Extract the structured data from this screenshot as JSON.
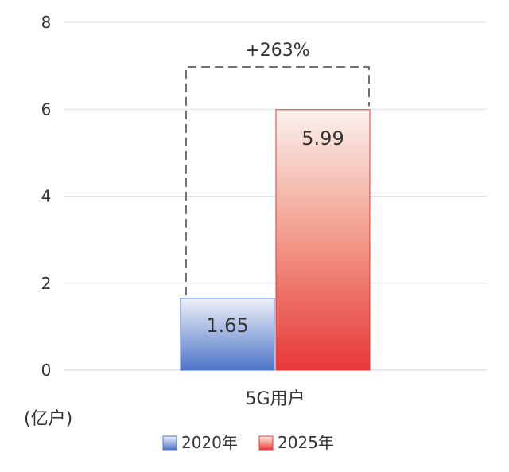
{
  "chart_data": {
    "type": "bar",
    "categories": [
      "5G用户"
    ],
    "series": [
      {
        "name": "2020年",
        "values": [
          1.65
        ],
        "color": "#4e74c8"
      },
      {
        "name": "2025年",
        "values": [
          5.99
        ],
        "color": "#e83838"
      }
    ],
    "ylim": [
      0,
      8
    ],
    "yticks": [
      0,
      2,
      4,
      6,
      8
    ],
    "ylabel": "(亿户)",
    "annotation": "+263%",
    "data_labels": [
      "1.65",
      "5.99"
    ],
    "grid": true,
    "legend_position": "bottom"
  }
}
